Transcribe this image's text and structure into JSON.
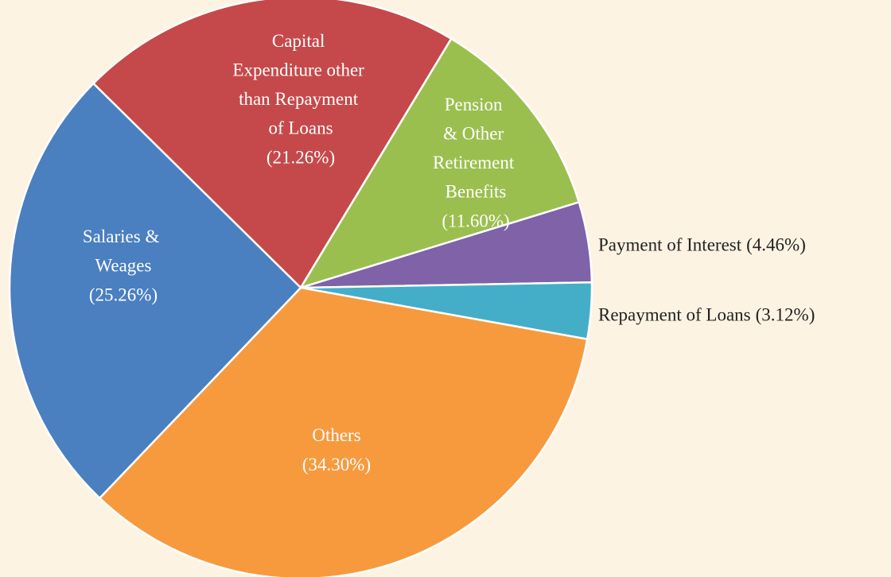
{
  "chart_data": {
    "type": "pie",
    "categories": [
      "Capital Expenditure other than Repayment of Loans",
      "Pension & Other Retirement Benefits",
      "Payment of Interest",
      "Repayment of Loans",
      "Others",
      "Salaries & Weages"
    ],
    "values": [
      21.26,
      11.6,
      4.46,
      3.12,
      34.3,
      25.26
    ],
    "value_labels": [
      "(21.26%)",
      "(11.60%)",
      "(4.46%)",
      "(3.12%)",
      "(34.30%)",
      "(25.26%)"
    ],
    "colors": [
      "#c5494a",
      "#9bbf4f",
      "#7f62a8",
      "#44aec8",
      "#f79a3e",
      "#4a7fc0"
    ]
  }
}
